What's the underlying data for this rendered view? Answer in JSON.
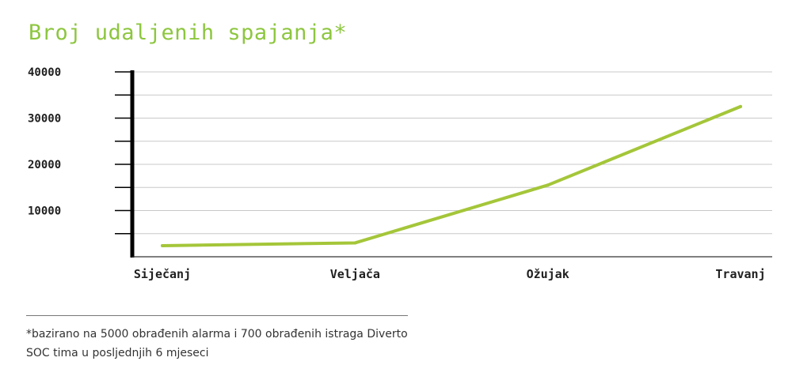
{
  "chart_data": {
    "type": "line",
    "title": "Broj udaljenih spajanja*",
    "xlabel": "",
    "ylabel": "",
    "categories": [
      "Siječanj",
      "Veljača",
      "Ožujak",
      "Travanj"
    ],
    "series": [
      {
        "values": [
          2400,
          3000,
          15500,
          32500
        ],
        "color": "#a4c639"
      }
    ],
    "ylim": [
      0,
      40000
    ],
    "yticks": [
      10000,
      20000,
      30000,
      40000
    ],
    "ytick_labels": [
      "10000",
      "20000",
      "30000",
      "40000"
    ],
    "grid": true,
    "legend": "none",
    "colors": {
      "title": "#8dc63f",
      "line": "#a4c639",
      "grid": "#c8c8c8",
      "axis": "#000000"
    }
  },
  "footnote": {
    "line1": "*bazirano na 5000 obrađenih alarma i 700 obrađenih istraga Diverto",
    "line2": "SOC tima u posljednjih 6 mjeseci"
  }
}
